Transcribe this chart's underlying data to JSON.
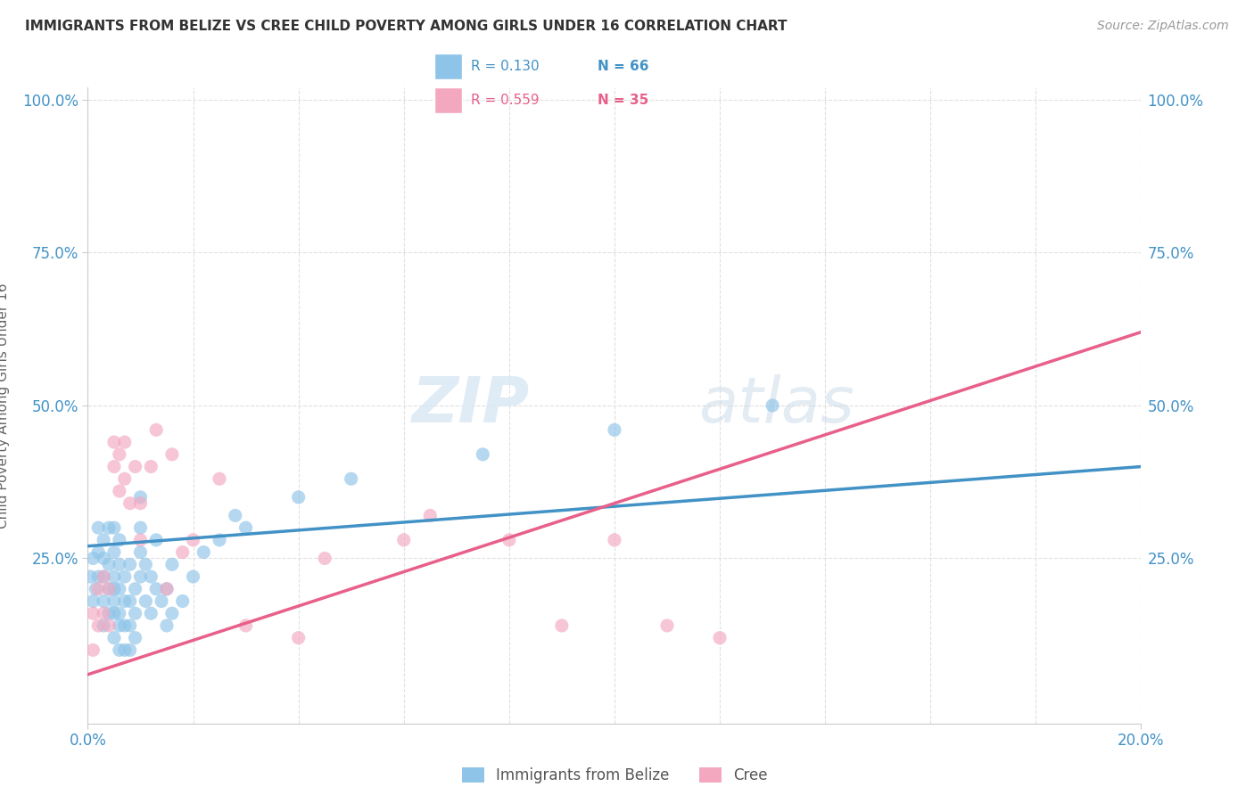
{
  "title": "IMMIGRANTS FROM BELIZE VS CREE CHILD POVERTY AMONG GIRLS UNDER 16 CORRELATION CHART",
  "source": "Source: ZipAtlas.com",
  "ylabel": "Child Poverty Among Girls Under 16",
  "xlim": [
    0.0,
    0.2
  ],
  "ylim": [
    -0.02,
    1.02
  ],
  "xticks": [
    0.0,
    0.2
  ],
  "xticklabels": [
    "0.0%",
    "20.0%"
  ],
  "yticks": [
    0.25,
    0.5,
    0.75,
    1.0
  ],
  "yticklabels": [
    "25.0%",
    "50.0%",
    "75.0%",
    "100.0%"
  ],
  "legend_r1": "R = 0.130",
  "legend_n1": "N = 66",
  "legend_r2": "R = 0.559",
  "legend_n2": "N = 35",
  "color_blue": "#8ec4e8",
  "color_pink": "#f4a8c0",
  "color_blue_text": "#4292c6",
  "color_pink_text": "#e8608a",
  "color_axis": "#cccccc",
  "color_grid": "#e0e0e0",
  "watermark_zip": "ZIP",
  "watermark_atlas": "atlas",
  "blue_scatter_x": [
    0.0005,
    0.001,
    0.001,
    0.0015,
    0.002,
    0.002,
    0.002,
    0.003,
    0.003,
    0.003,
    0.003,
    0.003,
    0.004,
    0.004,
    0.004,
    0.004,
    0.005,
    0.005,
    0.005,
    0.005,
    0.005,
    0.005,
    0.005,
    0.006,
    0.006,
    0.006,
    0.006,
    0.006,
    0.006,
    0.007,
    0.007,
    0.007,
    0.007,
    0.008,
    0.008,
    0.008,
    0.008,
    0.009,
    0.009,
    0.009,
    0.01,
    0.01,
    0.01,
    0.01,
    0.011,
    0.011,
    0.012,
    0.012,
    0.013,
    0.013,
    0.014,
    0.015,
    0.015,
    0.016,
    0.016,
    0.018,
    0.02,
    0.022,
    0.025,
    0.028,
    0.03,
    0.04,
    0.05,
    0.075,
    0.1,
    0.13
  ],
  "blue_scatter_y": [
    0.22,
    0.18,
    0.25,
    0.2,
    0.3,
    0.22,
    0.26,
    0.14,
    0.18,
    0.22,
    0.25,
    0.28,
    0.16,
    0.2,
    0.24,
    0.3,
    0.12,
    0.16,
    0.18,
    0.2,
    0.22,
    0.26,
    0.3,
    0.1,
    0.14,
    0.16,
    0.2,
    0.24,
    0.28,
    0.1,
    0.14,
    0.18,
    0.22,
    0.1,
    0.14,
    0.18,
    0.24,
    0.12,
    0.16,
    0.2,
    0.22,
    0.26,
    0.3,
    0.35,
    0.18,
    0.24,
    0.16,
    0.22,
    0.2,
    0.28,
    0.18,
    0.14,
    0.2,
    0.16,
    0.24,
    0.18,
    0.22,
    0.26,
    0.28,
    0.32,
    0.3,
    0.35,
    0.38,
    0.42,
    0.46,
    0.5
  ],
  "pink_scatter_x": [
    0.001,
    0.001,
    0.002,
    0.002,
    0.003,
    0.003,
    0.004,
    0.004,
    0.005,
    0.005,
    0.006,
    0.006,
    0.007,
    0.007,
    0.008,
    0.009,
    0.01,
    0.01,
    0.012,
    0.013,
    0.015,
    0.016,
    0.018,
    0.02,
    0.025,
    0.03,
    0.04,
    0.045,
    0.06,
    0.065,
    0.08,
    0.09,
    0.1,
    0.11,
    0.12
  ],
  "pink_scatter_y": [
    0.1,
    0.16,
    0.14,
    0.2,
    0.16,
    0.22,
    0.14,
    0.2,
    0.4,
    0.44,
    0.36,
    0.42,
    0.38,
    0.44,
    0.34,
    0.4,
    0.28,
    0.34,
    0.4,
    0.46,
    0.2,
    0.42,
    0.26,
    0.28,
    0.38,
    0.14,
    0.12,
    0.25,
    0.28,
    0.32,
    0.28,
    0.14,
    0.28,
    0.14,
    0.12
  ],
  "blue_trend_x": [
    0.0,
    0.2
  ],
  "blue_trend_y": [
    0.27,
    0.4
  ],
  "pink_trend_x": [
    0.0,
    0.2
  ],
  "pink_trend_y": [
    0.06,
    0.62
  ]
}
